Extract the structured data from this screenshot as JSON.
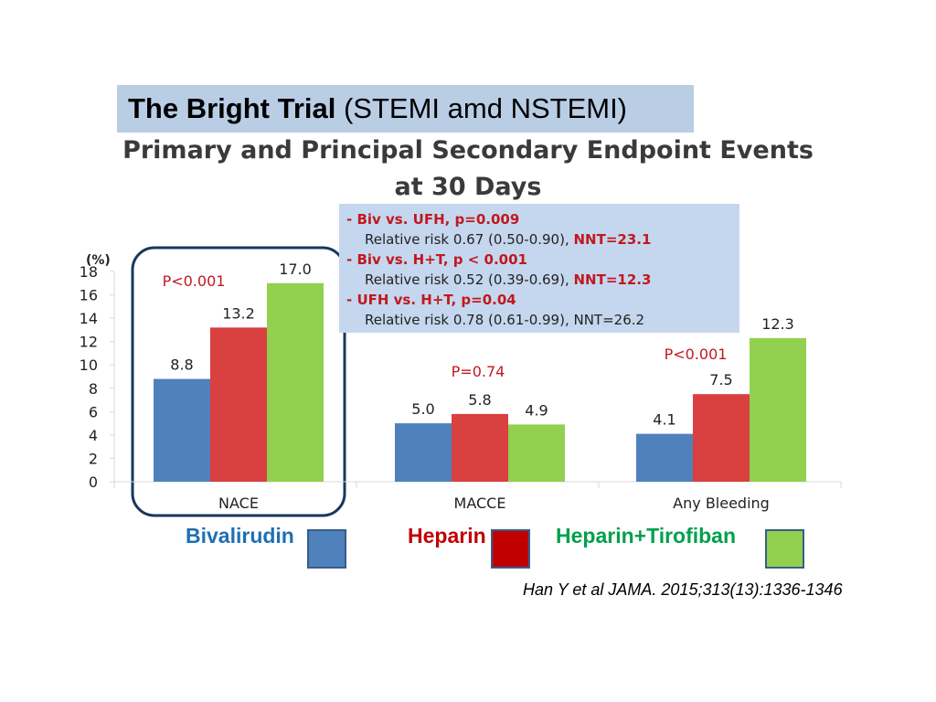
{
  "header": {
    "title_bold": "The Bright Trial",
    "title_rest": "(STEMI amd NSTEMI)",
    "subtitle_line1": "Primary and Principal Secondary Endpoint Events",
    "subtitle_line2": "at 30 Days"
  },
  "annotation": {
    "lines": [
      {
        "head": "- Biv vs. UFH, p=0.009",
        "body": "Relative risk 0.67 (0.50-0.90), ",
        "nnt": "NNT=23.1",
        "nnt_highlight": true
      },
      {
        "head": "- Biv vs. H+T, p < 0.001",
        "body": "Relative risk 0.52 (0.39-0.69), ",
        "nnt": "NNT=12.3",
        "nnt_highlight": true
      },
      {
        "head": "- UFH vs. H+T, p=0.04",
        "body": "Relative risk 0.78 (0.61-0.99), ",
        "nnt": "NNT=26.2",
        "nnt_highlight": false
      }
    ]
  },
  "chart_data": {
    "type": "bar",
    "ylabel": "(%)",
    "ylim": [
      0,
      18
    ],
    "yticks": [
      "0",
      "2",
      "4",
      "6",
      "8",
      "10",
      "12",
      "14",
      "16",
      "18"
    ],
    "categories": [
      "NACE",
      "MACCE",
      "Any Bleeding"
    ],
    "series": [
      {
        "name": "Bivalirudin",
        "color": "#4f81bd",
        "values": [
          8.8,
          5.0,
          4.1
        ],
        "labels": [
          "8.8",
          "5.0",
          "4.1"
        ]
      },
      {
        "name": "Heparin",
        "color": "#d94040",
        "values": [
          13.2,
          5.8,
          7.5
        ],
        "labels": [
          "13.2",
          "5.8",
          "7.5"
        ]
      },
      {
        "name": "Heparin+Tirofiban",
        "color": "#92d050",
        "values": [
          17.0,
          4.9,
          12.3
        ],
        "labels": [
          "17.0",
          "4.9",
          "12.3"
        ]
      }
    ],
    "p_values": [
      "P<0.001",
      "P=0.74",
      "P<0.001"
    ],
    "highlighted_category": "NACE",
    "grid": false
  },
  "legend": {
    "items": [
      {
        "label": "Bivalirudin",
        "text_color": "#1f6fb5",
        "swatch_color": "#4f81bd"
      },
      {
        "label": "Heparin",
        "text_color": "#c00000",
        "swatch_color": "#c00000"
      },
      {
        "label": "Heparin+Tirofiban",
        "text_color": "#00a04b",
        "swatch_color": "#92d050"
      }
    ]
  },
  "citation": "Han Y et al JAMA. 2015;313(13):1336-1346"
}
